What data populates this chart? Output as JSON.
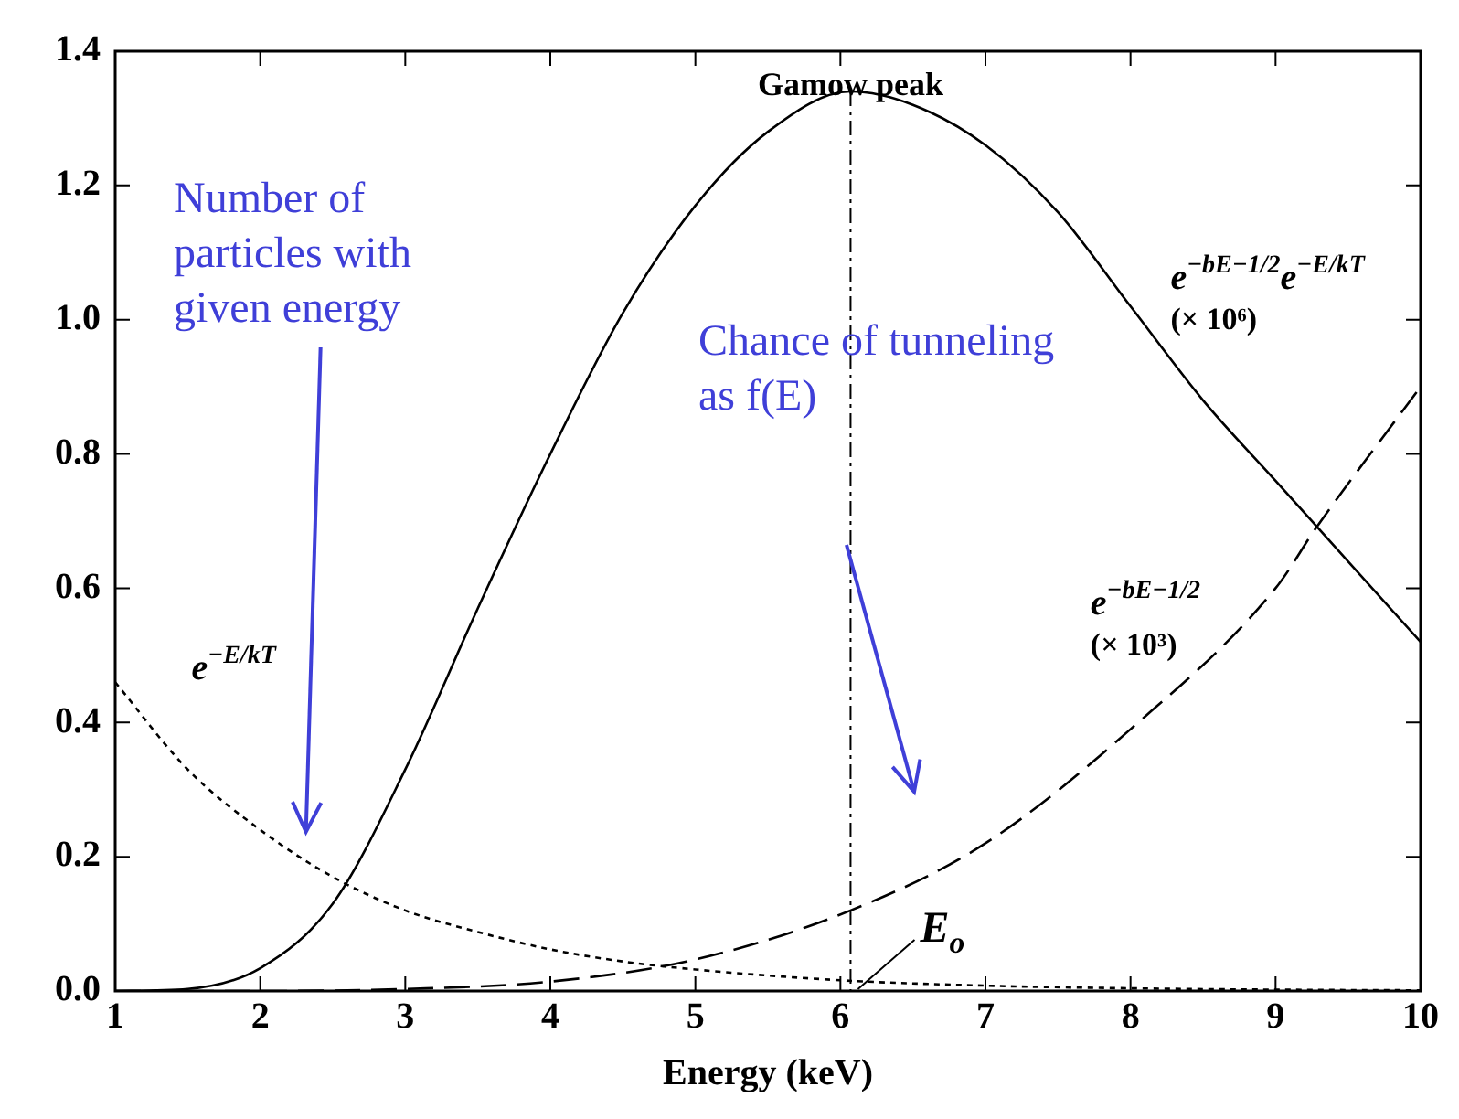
{
  "chart_data": {
    "type": "line",
    "xlabel": "Energy (keV)",
    "xlim": [
      1,
      10
    ],
    "xticks": [
      1,
      2,
      3,
      4,
      5,
      6,
      7,
      8,
      9,
      10
    ],
    "ylim": [
      0,
      1.4
    ],
    "yticks": [
      {
        "value": 0,
        "label": "0.0"
      },
      {
        "value": 0.2,
        "label": "0.2"
      },
      {
        "value": 0.4,
        "label": "0.4"
      },
      {
        "value": 0.6,
        "label": "0.6"
      },
      {
        "value": 0.8,
        "label": "0.8"
      },
      {
        "value": 1,
        "label": "1.0"
      },
      {
        "value": 1.2,
        "label": "1.2"
      },
      {
        "value": 1.4,
        "label": "1.4"
      }
    ],
    "grid": false,
    "legend": false,
    "marker": "none",
    "series": [
      {
        "name": "e$^{−bE−1/2}$e$^{−E/kT}$ (× 10⁶)",
        "color": "#000000",
        "line_style": "solid",
        "x": [
          1,
          1.5,
          2,
          2.5,
          3,
          3.5,
          4,
          4.5,
          5,
          5.5,
          6.07,
          6.5,
          7,
          7.5,
          8,
          8.5,
          9,
          9.5,
          10
        ],
        "values": [
          0,
          0.003,
          0.034,
          0.13,
          0.33,
          0.57,
          0.8,
          1.01,
          1.17,
          1.28,
          1.34,
          1.32,
          1.26,
          1.16,
          1.02,
          0.88,
          0.76,
          0.64,
          0.52
        ]
      },
      {
        "name": "e$^{−bE−1/2}$ (× 10³)",
        "color": "#000000",
        "line_style": "dashed",
        "x": [
          1,
          2,
          3,
          4,
          5,
          6.07,
          7,
          8,
          9,
          9.28,
          10
        ],
        "values": [
          0,
          0,
          0.003,
          0.014,
          0.047,
          0.12,
          0.22,
          0.39,
          0.6,
          0.69,
          0.9
        ]
      },
      {
        "name": "e$^{−E/kT}$",
        "color": "#000000",
        "line_style": "dotted",
        "x": [
          1,
          1.5,
          2,
          2.5,
          3,
          3.5,
          4,
          4.5,
          5,
          6,
          7,
          8,
          9,
          10
        ],
        "values": [
          0.46,
          0.33,
          0.24,
          0.17,
          0.12,
          0.088,
          0.062,
          0.044,
          0.032,
          0.016,
          0.008,
          0.004,
          0.002,
          0.001
        ]
      }
    ],
    "ref_lines": [
      {
        "axis": "x",
        "value": 6.07,
        "label": "Gamow peak",
        "line_style": "dashdot",
        "color": "#000000"
      }
    ],
    "annotations": [
      "Number of particles with given energy",
      "Chance of tunneling as f(E)",
      {
        "text": "E$_{o}$",
        "x": 6.07,
        "y": 0
      }
    ]
  }
}
